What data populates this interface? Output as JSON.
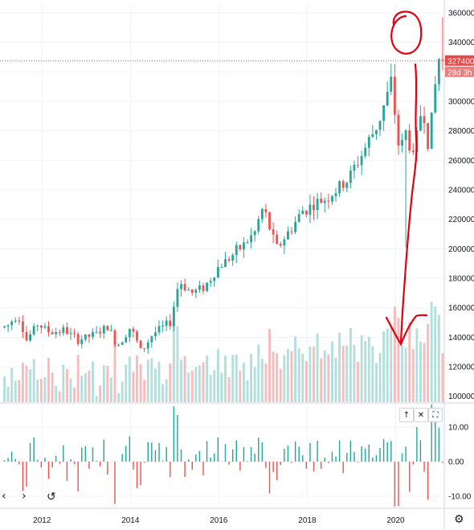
{
  "chart_data": {
    "type": "candlestick",
    "title": "",
    "price_axis": {
      "ticks": [
        100000,
        120000,
        140000,
        160000,
        180000,
        200000,
        220000,
        240000,
        260000,
        280000,
        300000,
        320000,
        340000,
        360000
      ],
      "tick_labels": [
        "100000",
        "120000",
        "140000",
        "160000",
        "180000",
        "200000",
        "220000",
        "240000",
        "260000",
        "280000",
        "300000",
        "320000",
        "340000",
        "360000"
      ],
      "ylim": [
        96000,
        366000
      ]
    },
    "current_price": {
      "value": 327400,
      "label": "327400",
      "countdown": "28d 3h"
    },
    "x_axis": {
      "tick_labels": [
        "2012",
        "2014",
        "2016",
        "2018",
        "2020"
      ],
      "tick_positions": [
        2012,
        2014,
        2016,
        2018,
        2020
      ],
      "xlim": [
        2011.05,
        2021.1
      ]
    },
    "candles_anchors": [
      {
        "t": 2011.2,
        "v": 147000
      },
      {
        "t": 2011.45,
        "v": 156000
      },
      {
        "t": 2011.65,
        "v": 138000
      },
      {
        "t": 2011.9,
        "v": 149000
      },
      {
        "t": 2012.2,
        "v": 143000
      },
      {
        "t": 2012.5,
        "v": 145000
      },
      {
        "t": 2012.8,
        "v": 138000
      },
      {
        "t": 2013.2,
        "v": 142000
      },
      {
        "t": 2013.5,
        "v": 147000
      },
      {
        "t": 2013.7,
        "v": 134000
      },
      {
        "t": 2014.0,
        "v": 147000
      },
      {
        "t": 2014.25,
        "v": 130000
      },
      {
        "t": 2014.5,
        "v": 142000
      },
      {
        "t": 2014.9,
        "v": 150000
      },
      {
        "t": 2015.1,
        "v": 178000
      },
      {
        "t": 2015.4,
        "v": 170000
      },
      {
        "t": 2015.7,
        "v": 175000
      },
      {
        "t": 2016.0,
        "v": 188000
      },
      {
        "t": 2016.4,
        "v": 198000
      },
      {
        "t": 2016.8,
        "v": 210000
      },
      {
        "t": 2017.0,
        "v": 228000
      },
      {
        "t": 2017.3,
        "v": 200000
      },
      {
        "t": 2017.6,
        "v": 212000
      },
      {
        "t": 2017.9,
        "v": 226000
      },
      {
        "t": 2018.3,
        "v": 232000
      },
      {
        "t": 2018.6,
        "v": 238000
      },
      {
        "t": 2018.9,
        "v": 246000
      },
      {
        "t": 2019.2,
        "v": 262000
      },
      {
        "t": 2019.6,
        "v": 285000
      },
      {
        "t": 2019.9,
        "v": 312000
      },
      {
        "t": 2020.1,
        "v": 262000
      },
      {
        "t": 2020.2,
        "v": 282000
      },
      {
        "t": 2020.4,
        "v": 262000
      },
      {
        "t": 2020.6,
        "v": 298000
      },
      {
        "t": 2020.75,
        "v": 270000
      },
      {
        "t": 2020.9,
        "v": 312000
      },
      {
        "t": 2020.98,
        "v": 329000
      },
      {
        "t": 2021.03,
        "v": 327400
      }
    ],
    "candle_count": 120,
    "candle_start": 2011.15,
    "candle_step": 0.0833,
    "volume": {
      "hist_colors": {
        "up": "#b2dfdb",
        "down": "#f8bbbb"
      }
    },
    "oscillator": {
      "ticks": [
        10,
        0,
        -10
      ],
      "tick_labels": [
        "10.00",
        "0.00",
        "-10.00"
      ],
      "ylim": [
        -13.5,
        17
      ]
    },
    "colors": {
      "up": "#26a69a",
      "down": "#ef5350",
      "grid": "#f0f3fa",
      "annotation": "#e0000f",
      "price_line": "#e54a4a"
    }
  },
  "controls": {
    "up_arrow": "↑",
    "close": "✕",
    "maximize": "⛶",
    "prev": "‹",
    "next": "›",
    "reset": "↺",
    "settings": "⚙"
  }
}
